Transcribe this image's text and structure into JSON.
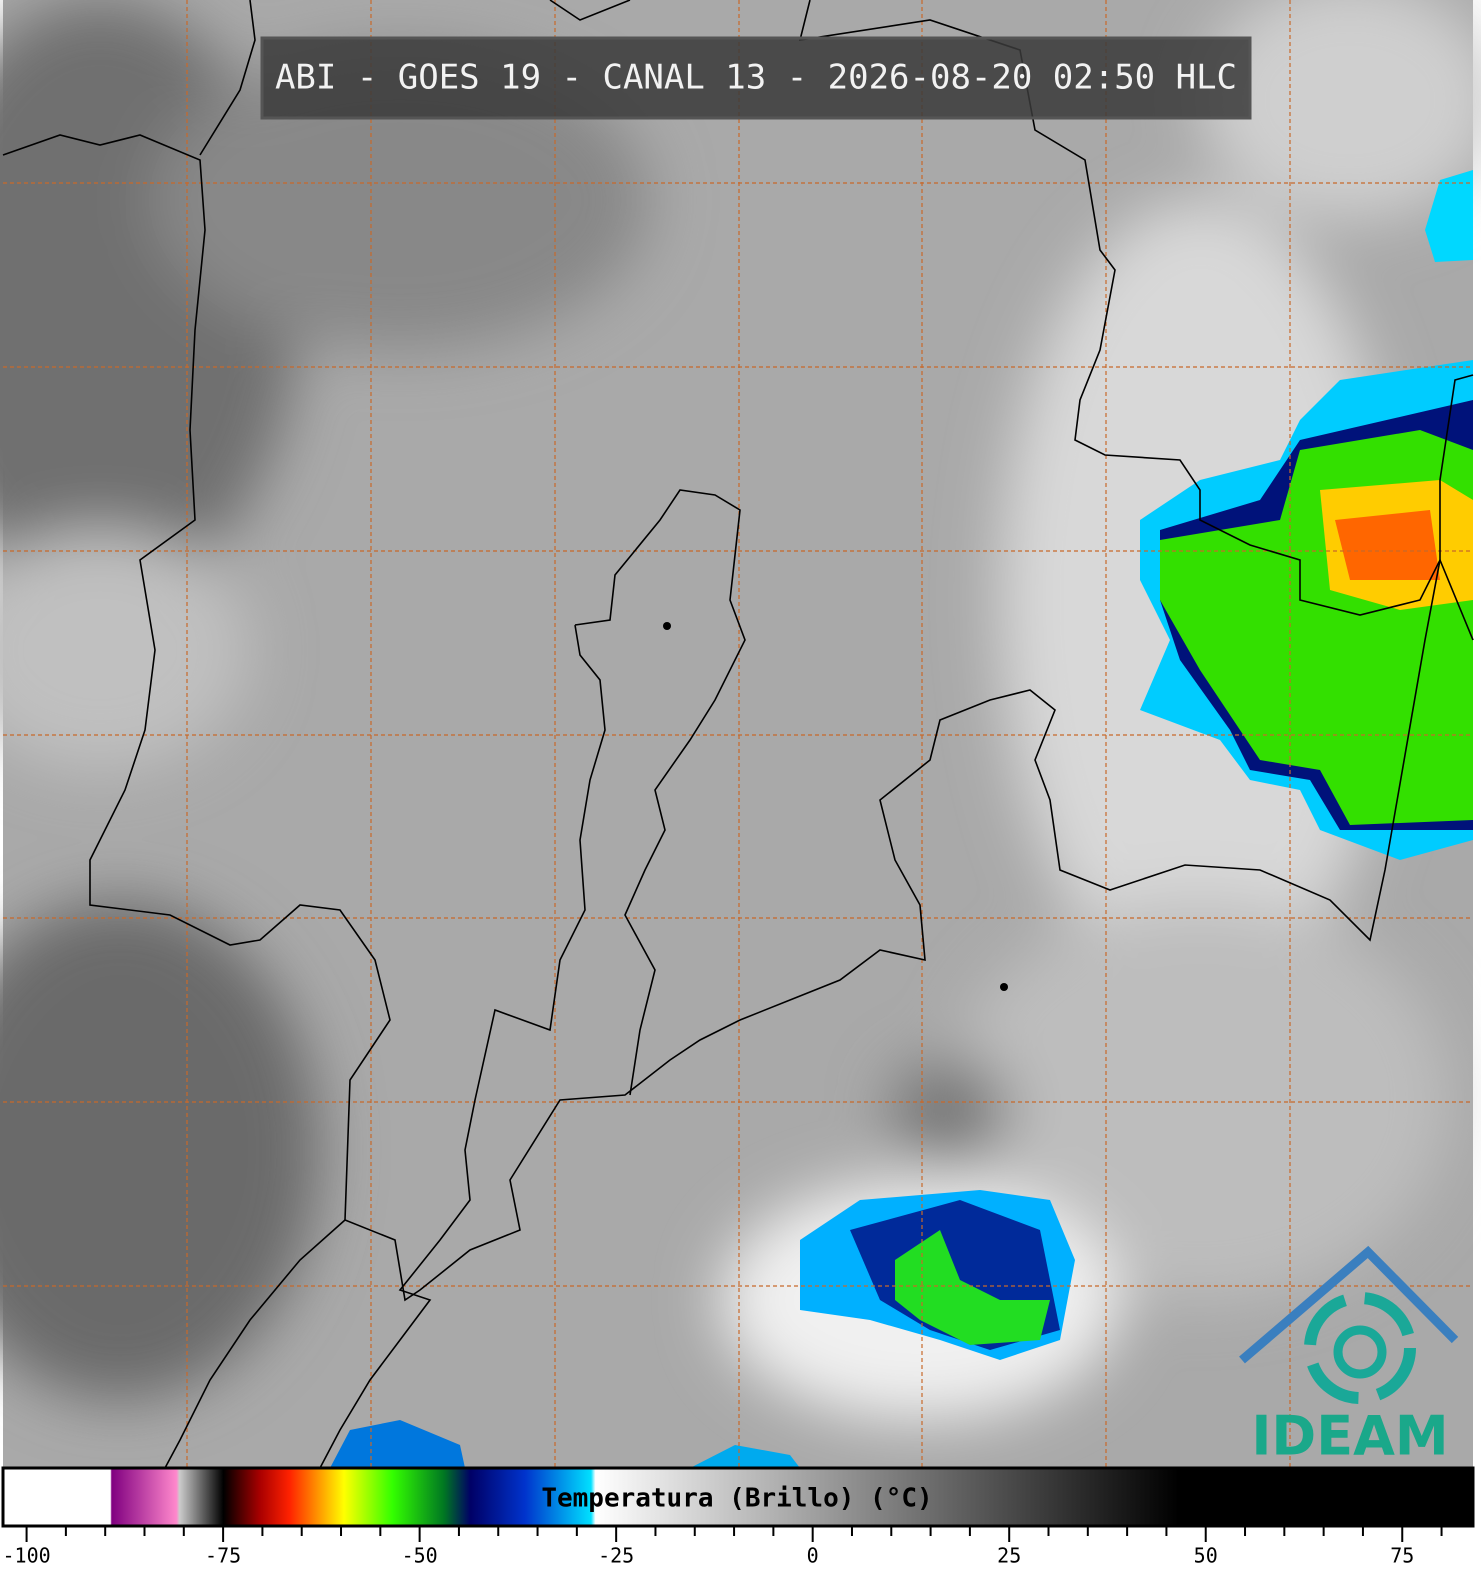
{
  "title": "ABI - GOES 19 - CANAL 13 - 2026-08-20 02:50 HLC",
  "colorbar": {
    "label": "Temperatura (Brillo) (°C)",
    "lim": [
      -103,
      84
    ],
    "ticks": [
      -100,
      -75,
      -50,
      -25,
      0,
      25,
      50,
      75
    ],
    "minor_ticks": [
      -95,
      -90,
      -85,
      -80,
      -70,
      -65,
      -60,
      -55,
      -45,
      -40,
      -35,
      -30,
      -20,
      -15,
      -10,
      -5,
      5,
      10,
      15,
      20,
      30,
      35,
      40,
      45,
      55,
      60,
      65,
      70,
      80
    ]
  },
  "logo": "IDEAM"
}
